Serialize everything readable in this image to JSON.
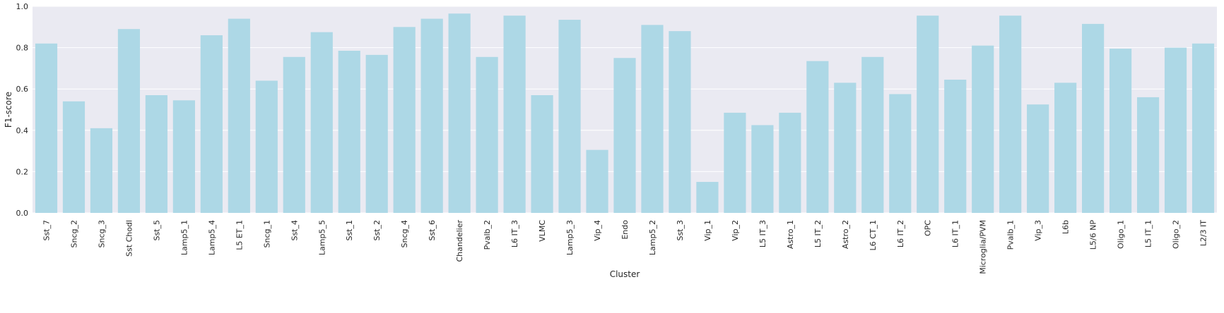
{
  "chart_data": {
    "type": "bar",
    "xlabel": "Cluster",
    "ylabel": "F1-score",
    "ylim": [
      0,
      1.0
    ],
    "yticks": [
      0.0,
      0.2,
      0.4,
      0.6,
      0.8,
      1.0
    ],
    "ytick_labels": [
      "0.0",
      "0.2",
      "0.4",
      "0.6",
      "0.8",
      "1.0"
    ],
    "grid": true,
    "bar_color": "#add8e6",
    "background_color": "#eaeaf2",
    "categories": [
      "Sst_7",
      "Sncg_2",
      "Sncg_3",
      "Sst Chodl",
      "Sst_5",
      "Lamp5_1",
      "Lamp5_4",
      "L5 ET_1",
      "Sncg_1",
      "Sst_4",
      "Lamp5_5",
      "Sst_1",
      "Sst_2",
      "Sncg_4",
      "Sst_6",
      "Chandelier",
      "Pvalb_2",
      "L6 IT_3",
      "VLMC",
      "Lamp5_3",
      "Vip_4",
      "Endo",
      "Lamp5_2",
      "Sst_3",
      "Vip_1",
      "Vip_2",
      "L5 IT_3",
      "Astro_1",
      "L5 IT_2",
      "Astro_2",
      "L6 CT_1",
      "L6 IT_2",
      "OPC",
      "L6 IT_1",
      "Microglia/PVM",
      "Pvalb_1",
      "Vip_3",
      "L6b",
      "L5/6 NP",
      "Oligo_1",
      "L5 IT_1",
      "Oligo_2",
      "L2/3 IT"
    ],
    "values": [
      0.82,
      0.54,
      0.41,
      0.89,
      0.57,
      0.545,
      0.86,
      0.94,
      0.64,
      0.755,
      0.875,
      0.785,
      0.765,
      0.9,
      0.94,
      0.965,
      0.755,
      0.955,
      0.57,
      0.935,
      0.305,
      0.75,
      0.91,
      0.88,
      0.15,
      0.485,
      0.425,
      0.485,
      0.735,
      0.63,
      0.755,
      0.575,
      0.955,
      0.645,
      0.81,
      0.955,
      0.525,
      0.63,
      0.915,
      0.795,
      0.56,
      0.8,
      0.82
    ]
  }
}
